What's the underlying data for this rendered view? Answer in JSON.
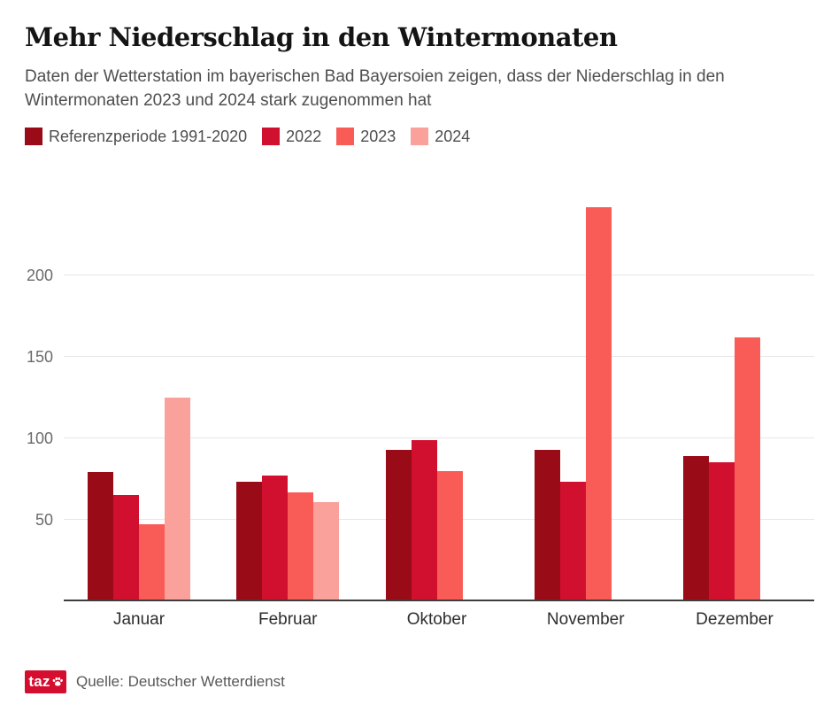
{
  "header": {
    "title": "Mehr Niederschlag in den Wintermonaten",
    "subtitle": "Daten der Wetterstation im bayerischen Bad Bayersoien zeigen, dass der Niederschlag in den Wintermonaten 2023 und 2024 stark zugenommen hat"
  },
  "legend": [
    {
      "label": "Referenzperiode 1991-2020",
      "color": "#9a0b18"
    },
    {
      "label": "2022",
      "color": "#d11030"
    },
    {
      "label": "2023",
      "color": "#f95b57"
    },
    {
      "label": "2024",
      "color": "#f9a19a"
    }
  ],
  "chart_data": {
    "type": "bar",
    "categories": [
      "Januar",
      "Februar",
      "Oktober",
      "November",
      "Dezember"
    ],
    "series": [
      {
        "name": "Referenzperiode 1991-2020",
        "key": "referenzperiode",
        "color": "#9a0b18",
        "values": [
          79,
          73,
          93,
          93,
          89
        ]
      },
      {
        "name": "2022",
        "key": "2022",
        "color": "#d11030",
        "values": [
          65,
          77,
          99,
          73,
          85
        ]
      },
      {
        "name": "2023",
        "key": "2023",
        "color": "#f95b57",
        "values": [
          47,
          67,
          80,
          242,
          162
        ]
      },
      {
        "name": "2024",
        "key": "2024",
        "color": "#f9a19a",
        "values": [
          125,
          61,
          null,
          null,
          null
        ]
      }
    ],
    "title": "Mehr Niederschlag in den Wintermonaten",
    "xlabel": "",
    "ylabel": "",
    "yticks": [
      50,
      100,
      150,
      200
    ],
    "ylim": [
      0,
      256
    ],
    "grid": true,
    "legend_position": "top"
  },
  "footer": {
    "logo_text": "taz",
    "brand_color": "#d50d2e",
    "source": "Quelle: Deutscher Wetterdienst"
  }
}
